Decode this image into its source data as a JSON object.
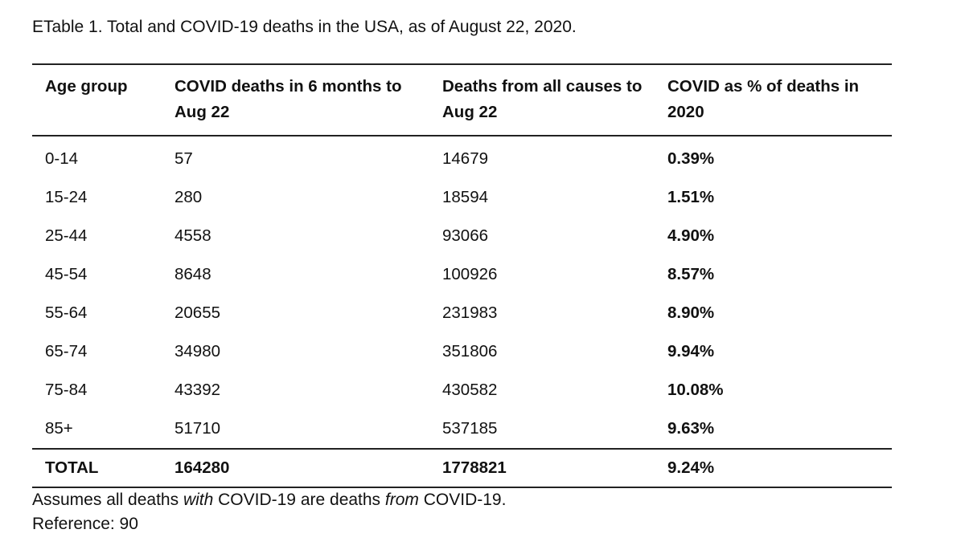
{
  "caption": "ETable 1. Total and COVID-19 deaths in the USA, as of August 22, 2020.",
  "table": {
    "headers": [
      "Age group",
      "COVID deaths in 6 months to Aug 22",
      "Deaths from all causes to Aug 22",
      "COVID as % of deaths in 2020"
    ],
    "rows": [
      {
        "age": "0-14",
        "covid": "57",
        "all": "14679",
        "pct": "0.39%"
      },
      {
        "age": "15-24",
        "covid": "280",
        "all": "18594",
        "pct": "1.51%"
      },
      {
        "age": "25-44",
        "covid": "4558",
        "all": "93066",
        "pct": "4.90%"
      },
      {
        "age": "45-54",
        "covid": "8648",
        "all": "100926",
        "pct": "8.57%"
      },
      {
        "age": "55-64",
        "covid": "20655",
        "all": "231983",
        "pct": "8.90%"
      },
      {
        "age": "65-74",
        "covid": "34980",
        "all": "351806",
        "pct": "9.94%"
      },
      {
        "age": "75-84",
        "covid": "43392",
        "all": "430582",
        "pct": "10.08%"
      },
      {
        "age": "85+",
        "covid": "51710",
        "all": "537185",
        "pct": "9.63%"
      }
    ],
    "total": {
      "age": "TOTAL",
      "covid": "164280",
      "all": "1778821",
      "pct": "9.24%"
    }
  },
  "notes": {
    "assumption": {
      "part1": "Assumes all deaths ",
      "with": "with",
      "part2": " COVID-19 are deaths ",
      "from": "from",
      "part3": " COVID-19."
    },
    "reference": "Reference: 90"
  }
}
